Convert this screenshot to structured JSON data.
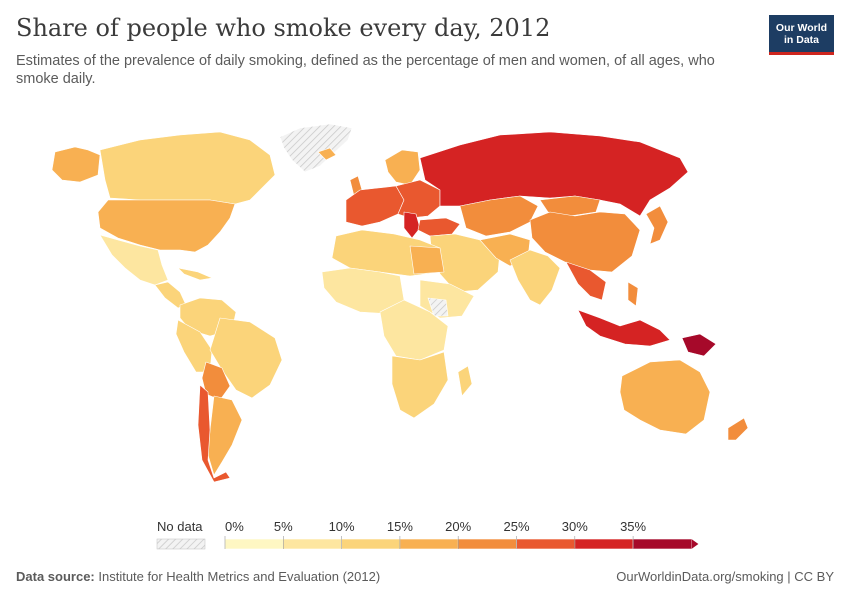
{
  "header": {
    "title": "Share of people who smoke every day, 2012",
    "subtitle": "Estimates of the prevalence of daily smoking, defined as the percentage of men and women, of all ages, who smoke daily.",
    "logo_line1": "Our World",
    "logo_line2": "in Data"
  },
  "legend": {
    "no_data_label": "No data",
    "bins": [
      "0%",
      "5%",
      "10%",
      "15%",
      "20%",
      "25%",
      "30%",
      "35%"
    ],
    "colors": [
      "#fef7c3",
      "#fde6a0",
      "#fbd47a",
      "#f8b052",
      "#f28d3c",
      "#e9582f",
      "#d52323",
      "#a6092a"
    ]
  },
  "footer": {
    "source_label": "Data source:",
    "source_text": "Institute for Health Metrics and Evaluation (2012)",
    "right_text": "OurWorldinData.org/smoking | CC BY"
  },
  "chart_data": {
    "type": "choropleth",
    "unit": "%",
    "regions": [
      {
        "name": "Russia",
        "bin": 6
      },
      {
        "name": "Papua New Guinea",
        "bin": 7
      },
      {
        "name": "Indonesia",
        "bin": 6
      },
      {
        "name": "Greece",
        "bin": 6
      },
      {
        "name": "China",
        "bin": 4
      },
      {
        "name": "United States",
        "bin": 3
      },
      {
        "name": "Canada",
        "bin": 2
      },
      {
        "name": "Brazil",
        "bin": 2
      },
      {
        "name": "Chile",
        "bin": 5
      },
      {
        "name": "Australia",
        "bin": 3
      },
      {
        "name": "India",
        "bin": 2
      },
      {
        "name": "Central Africa",
        "bin": 1
      },
      {
        "name": "Greenland",
        "bin": -1
      }
    ]
  }
}
